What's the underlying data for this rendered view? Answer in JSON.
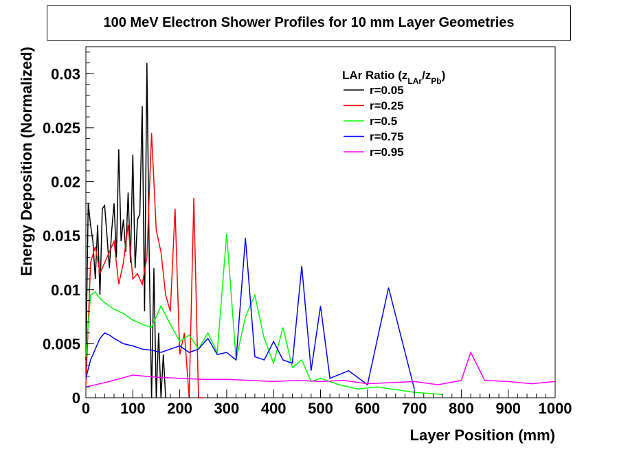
{
  "chart_data": {
    "type": "line",
    "title": "100 MeV Electron Shower Profiles for 10 mm Layer Geometries",
    "xlabel": "Layer Position (mm)",
    "ylabel": "Energy Deposition (Normalized)",
    "xlim": [
      0,
      1000
    ],
    "ylim": [
      0,
      0.0325
    ],
    "x_ticks": [
      0,
      100,
      200,
      300,
      400,
      500,
      600,
      700,
      800,
      900,
      1000
    ],
    "x_tick_labels": [
      "0",
      "100",
      "200",
      "300",
      "400",
      "500",
      "600",
      "700",
      "800",
      "900",
      "1000"
    ],
    "y_ticks": [
      0,
      0.005,
      0.01,
      0.015,
      0.02,
      0.025,
      0.03
    ],
    "y_tick_labels": [
      "0",
      "0.005",
      "0.01",
      "0.015",
      "0.02",
      "0.025",
      "0.03"
    ],
    "grid": false,
    "legend_position": "top-right",
    "legend": {
      "title_main": "LAr Ratio (z",
      "title_sub1": "LAr",
      "title_mid": "/z",
      "title_sub2": "Pb",
      "title_end": ")"
    },
    "series": [
      {
        "name": "r=0.05",
        "color": "#000000",
        "x": [
          0,
          5,
          10,
          15,
          20,
          25,
          30,
          35,
          40,
          45,
          50,
          55,
          60,
          65,
          70,
          75,
          80,
          85,
          90,
          95,
          100,
          105,
          110,
          115,
          120,
          125,
          130,
          135,
          140,
          145,
          150,
          155,
          160,
          165,
          170
        ],
        "y": [
          0.0035,
          0.018,
          0.016,
          0.0145,
          0.011,
          0.016,
          0.0095,
          0.0175,
          0.0178,
          0.015,
          0.012,
          0.0155,
          0.018,
          0.013,
          0.023,
          0.0145,
          0.0165,
          0.0135,
          0.019,
          0.0125,
          0.0225,
          0.012,
          0.0165,
          0.017,
          0.027,
          0.008,
          0.031,
          0.013,
          0.0,
          0.012,
          0.0,
          0.006,
          0.0,
          0.004,
          0.0
        ]
      },
      {
        "name": "r=0.25",
        "color": "#ff0000",
        "x": [
          0,
          10,
          20,
          30,
          40,
          50,
          60,
          70,
          80,
          90,
          100,
          110,
          120,
          130,
          140,
          150,
          160,
          170,
          180,
          190,
          200,
          210,
          220,
          230,
          240,
          250
        ],
        "y": [
          0.0012,
          0.0125,
          0.014,
          0.0115,
          0.0125,
          0.0135,
          0.0145,
          0.0105,
          0.0125,
          0.016,
          0.011,
          0.0115,
          0.0105,
          0.013,
          0.0245,
          0.0155,
          0.0135,
          0.0095,
          0.008,
          0.0175,
          0.004,
          0.006,
          0.0,
          0.0185,
          0.0,
          0.0
        ]
      },
      {
        "name": "r=0.5",
        "color": "#00ff00",
        "x": [
          0,
          10,
          20,
          30,
          40,
          60,
          80,
          100,
          120,
          140,
          160,
          180,
          200,
          220,
          240,
          260,
          280,
          300,
          320,
          340,
          360,
          380,
          400,
          420,
          440,
          460,
          480,
          500,
          540,
          580,
          620,
          700,
          760
        ],
        "y": [
          0.0038,
          0.0095,
          0.0098,
          0.0092,
          0.0088,
          0.0082,
          0.0078,
          0.0072,
          0.0068,
          0.0065,
          0.0085,
          0.0068,
          0.0052,
          0.0058,
          0.0045,
          0.006,
          0.0042,
          0.0152,
          0.0035,
          0.0075,
          0.0095,
          0.0055,
          0.0032,
          0.0065,
          0.0028,
          0.0035,
          0.0015,
          0.0018,
          0.0012,
          0.0008,
          0.001,
          0.0005,
          0.0003
        ]
      },
      {
        "name": "r=0.75",
        "color": "#0000ff",
        "x": [
          0,
          10,
          20,
          30,
          40,
          50,
          60,
          80,
          100,
          120,
          140,
          160,
          180,
          200,
          220,
          240,
          260,
          280,
          300,
          320,
          340,
          360,
          380,
          400,
          420,
          440,
          460,
          480,
          500,
          520,
          560,
          600,
          645,
          700
        ],
        "y": [
          0.0018,
          0.0035,
          0.0045,
          0.0055,
          0.006,
          0.0058,
          0.0055,
          0.005,
          0.0048,
          0.0045,
          0.0044,
          0.0042,
          0.0045,
          0.0048,
          0.0042,
          0.0045,
          0.0055,
          0.004,
          0.0042,
          0.0035,
          0.0148,
          0.0038,
          0.0035,
          0.0052,
          0.0035,
          0.0032,
          0.0122,
          0.0025,
          0.0085,
          0.0018,
          0.0025,
          0.0012,
          0.0102,
          0.0008
        ]
      },
      {
        "name": "r=0.95",
        "color": "#ff00ff",
        "x": [
          0,
          50,
          100,
          150,
          200,
          250,
          300,
          350,
          400,
          450,
          500,
          550,
          600,
          650,
          700,
          750,
          800,
          820,
          850,
          900,
          950,
          1000
        ],
        "y": [
          0.001,
          0.0015,
          0.0021,
          0.0019,
          0.0018,
          0.0017,
          0.0017,
          0.0016,
          0.0015,
          0.0016,
          0.0015,
          0.0016,
          0.0013,
          0.0014,
          0.0015,
          0.0012,
          0.0016,
          0.0042,
          0.0016,
          0.0015,
          0.0013,
          0.0015
        ]
      }
    ]
  }
}
